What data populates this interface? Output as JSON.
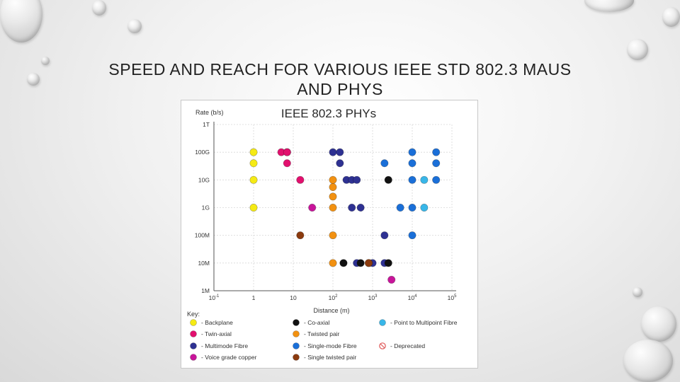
{
  "slide": {
    "title_line1": "SPEED AND REACH FOR VARIOUS IEEE STD 802.3 MAUS",
    "title_line2": "AND PHYS"
  },
  "chart_data": {
    "type": "scatter",
    "title": "IEEE 802.3 PHYs",
    "ylabel": "Rate (b/s)",
    "xlabel": "Distance (m)",
    "x_scale": "log",
    "y_scale": "log",
    "xlim": [
      0.1,
      100000
    ],
    "ylim": [
      1000000,
      1000000000000
    ],
    "x_ticks": [
      {
        "value": 0.1,
        "base": "10",
        "exp": "-1"
      },
      {
        "value": 1,
        "base": "1",
        "exp": ""
      },
      {
        "value": 10,
        "base": "10",
        "exp": ""
      },
      {
        "value": 100,
        "base": "10",
        "exp": "2"
      },
      {
        "value": 1000,
        "base": "10",
        "exp": "3"
      },
      {
        "value": 10000,
        "base": "10",
        "exp": "4"
      },
      {
        "value": 100000,
        "base": "10",
        "exp": "5"
      }
    ],
    "y_ticks": [
      {
        "value": 1000000,
        "label": "1M"
      },
      {
        "value": 10000000,
        "label": "10M"
      },
      {
        "value": 100000000,
        "label": "100M"
      },
      {
        "value": 1000000000,
        "label": "1G"
      },
      {
        "value": 10000000000,
        "label": "10G"
      },
      {
        "value": 100000000000,
        "label": "100G"
      },
      {
        "value": 1000000000000,
        "label": "1T"
      }
    ],
    "grid": true,
    "legend_title": "Key:",
    "legend_position": "bottom",
    "series": [
      {
        "name": "- Backplane",
        "color": "#f5ea14",
        "points": [
          [
            1,
            100000000000.0
          ],
          [
            1,
            40000000000.0
          ],
          [
            1,
            10000000000.0
          ],
          [
            1,
            1000000000.0
          ]
        ]
      },
      {
        "name": "- Twin-axial",
        "color": "#e2106e",
        "points": [
          [
            7,
            100000000000.0
          ],
          [
            5,
            100000000000.0
          ],
          [
            7,
            40000000000.0
          ],
          [
            15,
            10000000000.0
          ],
          [
            7,
            100000000000.0
          ]
        ]
      },
      {
        "name": "- Multimode Fibre",
        "color": "#2e3192",
        "points": [
          [
            100,
            100000000000.0
          ],
          [
            150,
            100000000000.0
          ],
          [
            150,
            40000000000.0
          ],
          [
            220,
            10000000000.0
          ],
          [
            300,
            10000000000.0
          ],
          [
            400,
            10000000000.0
          ],
          [
            300,
            1000000000.0
          ],
          [
            500,
            1000000000.0
          ],
          [
            2000,
            100000000.0
          ],
          [
            400,
            10000000.0
          ],
          [
            1000,
            10000000.0
          ],
          [
            2000,
            10000000.0
          ]
        ]
      },
      {
        "name": "- Voice grade copper",
        "color": "#c8149a",
        "points": [
          [
            30,
            1000000000.0
          ],
          [
            3000,
            2500000.0
          ]
        ]
      },
      {
        "name": "- Co-axial",
        "color": "#111111",
        "points": [
          [
            2500,
            10000000000.0
          ],
          [
            185,
            10000000.0
          ],
          [
            500,
            10000000.0
          ],
          [
            2500,
            10000000.0
          ]
        ]
      },
      {
        "name": "- Twisted pair",
        "color": "#f29111",
        "points": [
          [
            100,
            10000000000.0
          ],
          [
            100,
            5500000000.0
          ],
          [
            100,
            2500000000.0
          ],
          [
            100,
            1000000000.0
          ],
          [
            100,
            100000000.0
          ],
          [
            100,
            10000000.0
          ],
          [
            800,
            10000000.0
          ]
        ]
      },
      {
        "name": "- Single-mode Fibre",
        "color": "#1a6fd8",
        "points": [
          [
            2000,
            40000000000.0
          ],
          [
            10000,
            100000000000.0
          ],
          [
            40000,
            100000000000.0
          ],
          [
            10000,
            40000000000.0
          ],
          [
            40000,
            40000000000.0
          ],
          [
            10000,
            10000000000.0
          ],
          [
            40000,
            10000000000.0
          ],
          [
            5000,
            1000000000.0
          ],
          [
            10000,
            1000000000.0
          ],
          [
            10000,
            100000000.0
          ]
        ]
      },
      {
        "name": "- Single twisted pair",
        "color": "#8b3a0e",
        "points": [
          [
            15,
            100000000.0
          ],
          [
            800,
            10000000.0
          ]
        ]
      },
      {
        "name": "- Point to Multipoint Fibre",
        "color": "#38b6e8",
        "points": [
          [
            20000,
            10000000000.0
          ],
          [
            20000,
            1000000000.0
          ]
        ]
      },
      {
        "name": "- Deprecated",
        "color": "#e05a5a",
        "marker": "deprecated",
        "points": []
      }
    ]
  }
}
